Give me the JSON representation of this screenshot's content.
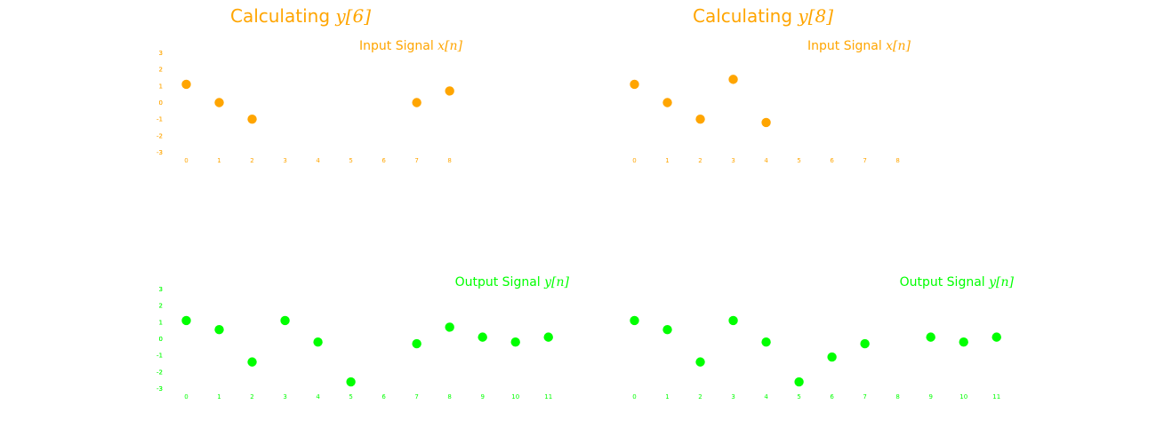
{
  "colors": {
    "input": "#FFA500",
    "output": "#00FF00",
    "background": "#FFFFFF"
  },
  "chart_data": [
    {
      "title": "Calculating",
      "title_math": "y[6]",
      "panels": [
        {
          "type": "scatter",
          "role": "input",
          "title": "Input Signal",
          "title_math": "x[n]",
          "color": "#FFA500",
          "x_ticks": [
            0,
            1,
            2,
            3,
            4,
            5,
            6,
            7,
            8
          ],
          "y_ticks": [
            3,
            2,
            1,
            0,
            -1,
            -2,
            -3
          ],
          "ylim": [
            -3,
            3
          ],
          "points": [
            [
              0,
              1.1
            ],
            [
              1,
              0
            ],
            [
              2,
              -1
            ],
            [
              7,
              0
            ],
            [
              8,
              0.7
            ]
          ]
        },
        {
          "type": "scatter",
          "role": "output",
          "title": "Output Signal",
          "title_math": "y[n]",
          "color": "#00FF00",
          "x_ticks": [
            0,
            1,
            2,
            3,
            4,
            5,
            6,
            7,
            8,
            9,
            10,
            11
          ],
          "y_ticks": [
            3,
            2,
            1,
            0,
            -1,
            -2,
            -3
          ],
          "ylim": [
            -3,
            3
          ],
          "points": [
            [
              0,
              1.1
            ],
            [
              1,
              0.55
            ],
            [
              2,
              -1.4
            ],
            [
              3,
              1.1
            ],
            [
              4,
              -0.2
            ],
            [
              5,
              -2.6
            ],
            [
              7,
              -0.3
            ],
            [
              8,
              0.7
            ],
            [
              9,
              0.1
            ],
            [
              10,
              -0.2
            ],
            [
              11,
              0.1
            ]
          ]
        }
      ]
    },
    {
      "title": "Calculating",
      "title_math": "y[8]",
      "panels": [
        {
          "type": "scatter",
          "role": "input",
          "title": "Input Signal",
          "title_math": "x[n]",
          "color": "#FFA500",
          "x_ticks": [
            0,
            1,
            2,
            3,
            4,
            5,
            6,
            7,
            8
          ],
          "y_ticks": [
            3,
            2,
            1,
            0,
            -1,
            -2,
            -3
          ],
          "ylim": [
            -3,
            3
          ],
          "points": [
            [
              0,
              1.1
            ],
            [
              1,
              0
            ],
            [
              2,
              -1
            ],
            [
              3,
              1.4
            ],
            [
              4,
              -1.2
            ]
          ]
        },
        {
          "type": "scatter",
          "role": "output",
          "title": "Output Signal",
          "title_math": "y[n]",
          "color": "#00FF00",
          "x_ticks": [
            0,
            1,
            2,
            3,
            4,
            5,
            6,
            7,
            8,
            9,
            10,
            11
          ],
          "y_ticks": [
            3,
            2,
            1,
            0,
            -1,
            -2,
            -3
          ],
          "ylim": [
            -3,
            3
          ],
          "points": [
            [
              0,
              1.1
            ],
            [
              1,
              0.55
            ],
            [
              2,
              -1.4
            ],
            [
              3,
              1.1
            ],
            [
              4,
              -0.2
            ],
            [
              5,
              -2.6
            ],
            [
              6,
              -1.1
            ],
            [
              7,
              -0.3
            ],
            [
              9,
              0.1
            ],
            [
              10,
              -0.2
            ],
            [
              11,
              0.1
            ]
          ]
        }
      ]
    }
  ]
}
